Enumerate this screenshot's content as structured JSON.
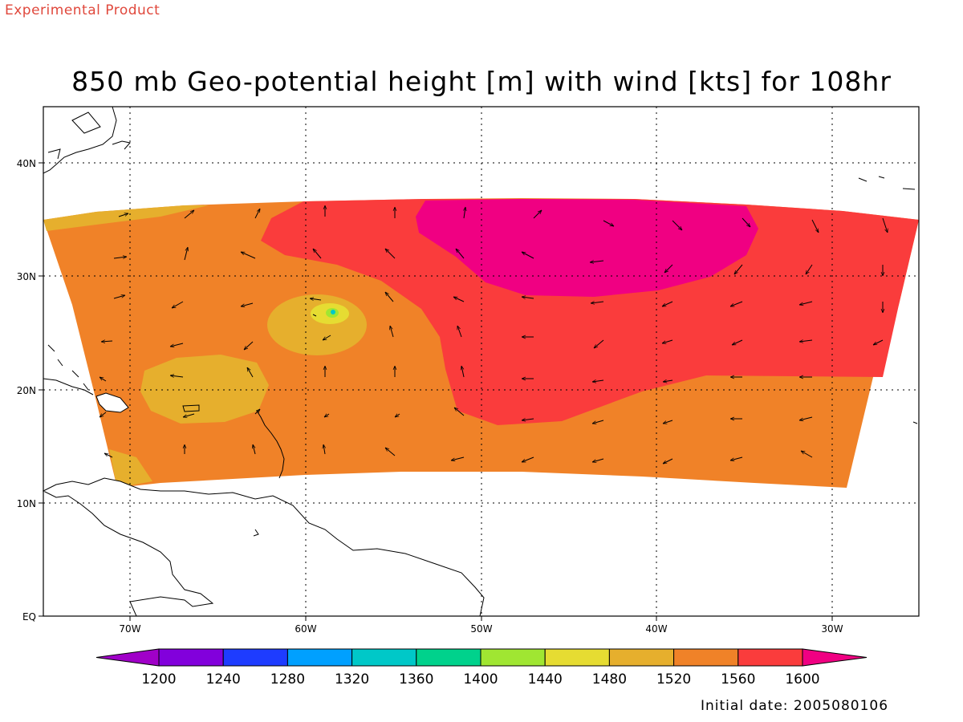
{
  "header": {
    "product_note": "Experimental Product",
    "title": "850 mb Geo-potential height [m] with wind [kts] for 108hr"
  },
  "footer": {
    "initial_date": "Initial date: 2005080106"
  },
  "axes": {
    "lon_labels": [
      "70W",
      "60W",
      "50W",
      "40W",
      "30W"
    ],
    "lat_labels": [
      "40N",
      "30N",
      "20N",
      "10N",
      "EQ"
    ]
  },
  "colorbar": {
    "labels": [
      "1200",
      "1240",
      "1280",
      "1320",
      "1360",
      "1400",
      "1440",
      "1480",
      "1520",
      "1560",
      "1600"
    ],
    "colors": [
      "#a000c8",
      "#8200dc",
      "#1e3cff",
      "#00a0ff",
      "#00c8c8",
      "#00d28c",
      "#a0e632",
      "#e6dc32",
      "#e6af2d",
      "#f08228",
      "#fa3c3c",
      "#f00082"
    ]
  },
  "field_colors": {
    "c1480": "#e6dc32",
    "c1520": "#e6af2d",
    "c1560": "#f08228",
    "c1600": "#fa3c3c",
    "c1640": "#f00082",
    "low_core_1": "#a0e632",
    "low_core_2": "#00c8c8"
  }
}
